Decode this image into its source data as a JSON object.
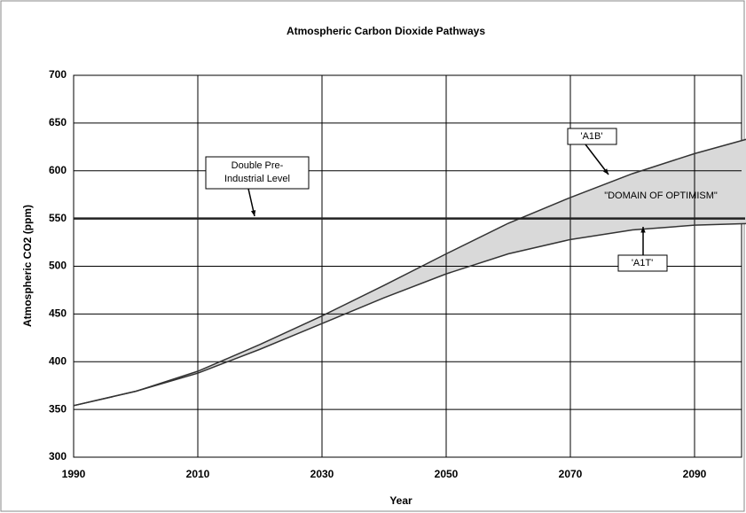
{
  "chart_data": {
    "type": "line",
    "title": "Atmospheric Carbon Dioxide Pathways",
    "x_label": "Year",
    "y_label": "Atmospheric CO2 (ppm)",
    "x": [
      1990,
      2000,
      2010,
      2020,
      2030,
      2040,
      2050,
      2060,
      2070,
      2080,
      2090,
      2100
    ],
    "series": [
      {
        "name": "'A1B'",
        "color": "#333333",
        "values": [
          354,
          369,
          390,
          418,
          448,
          480,
          513,
          545,
          572,
          597,
          618,
          636
        ]
      },
      {
        "name": "'A1T'",
        "color": "#333333",
        "values": [
          354,
          369,
          388,
          413,
          440,
          467,
          492,
          513,
          528,
          538,
          543,
          545
        ]
      }
    ],
    "band_color": "#d9d9d9",
    "reference_line": {
      "value": 550,
      "color": "#222222",
      "label": [
        "Double Pre-",
        "Industrial Level"
      ]
    },
    "band_label": "\"DOMAIN OF OPTIMISM\"",
    "xlim": [
      1990,
      2100
    ],
    "xticks": [
      1990,
      2010,
      2030,
      2050,
      2070,
      2090
    ],
    "ylim": [
      300,
      700
    ],
    "yticks": [
      300,
      350,
      400,
      450,
      500,
      550,
      600,
      650,
      700
    ],
    "grid": true
  }
}
